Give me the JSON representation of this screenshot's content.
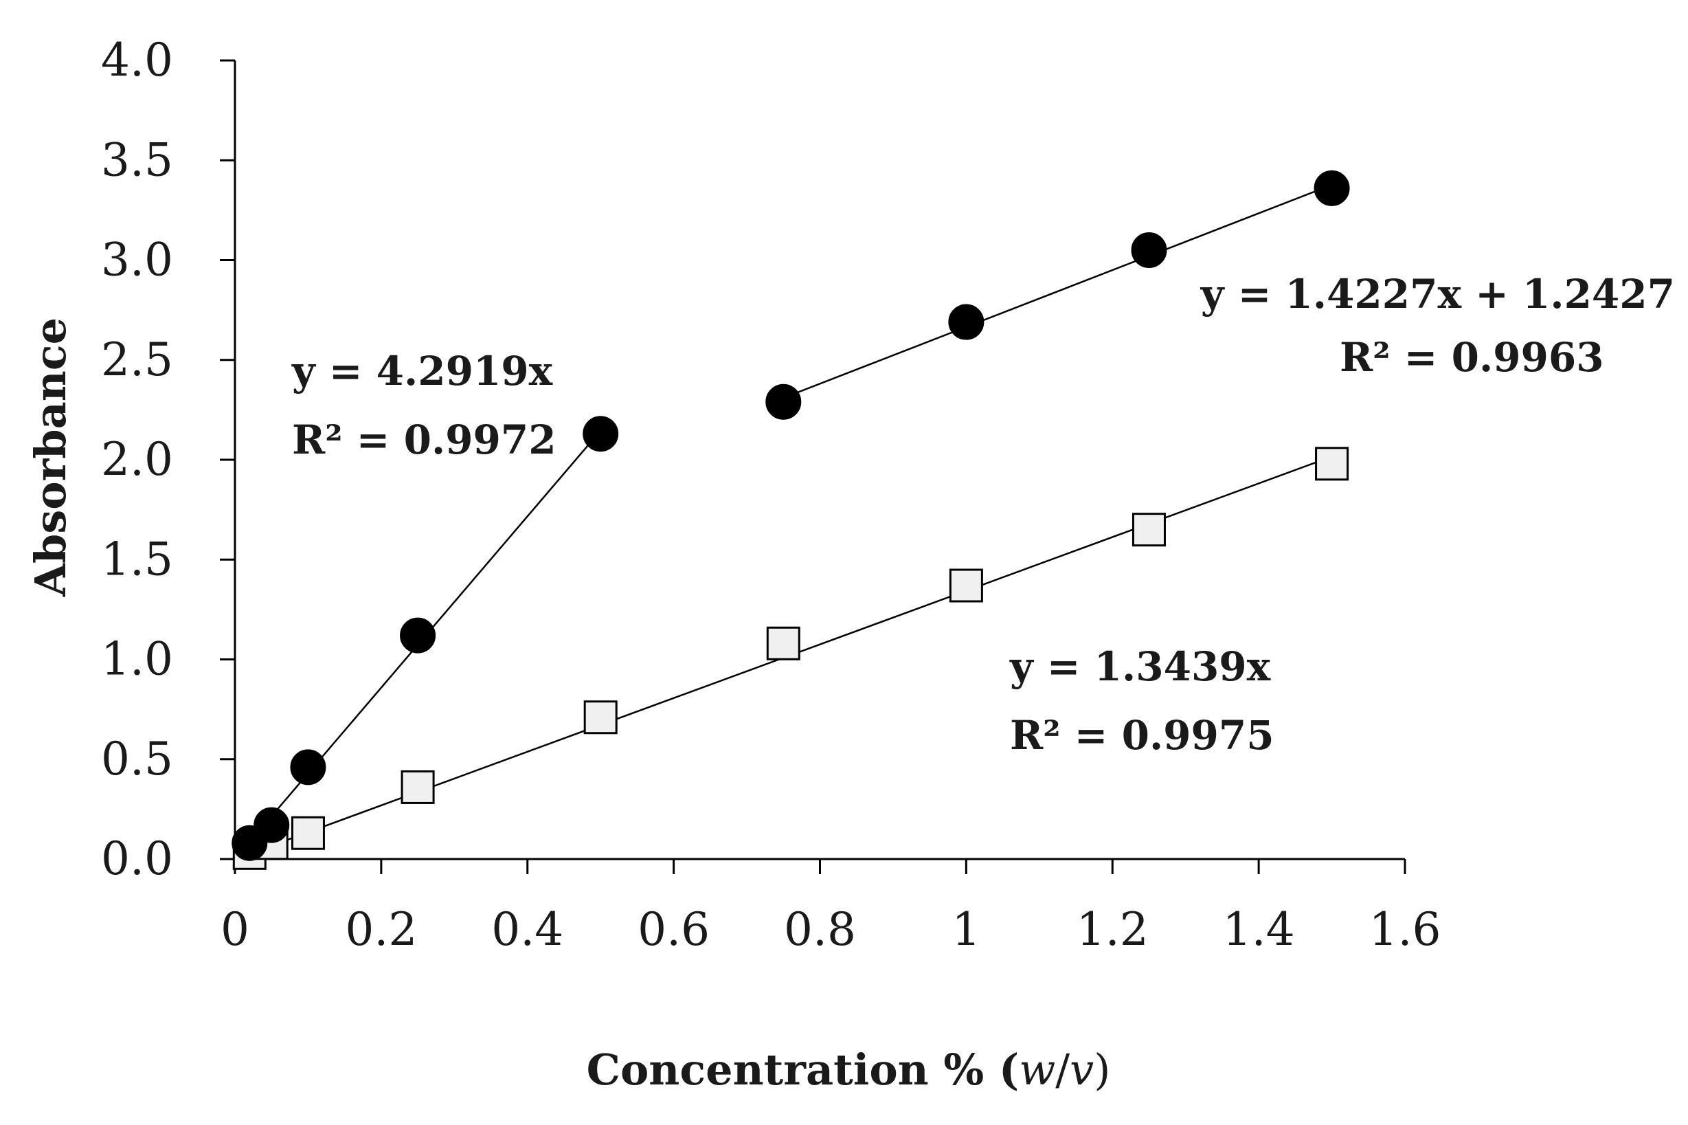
{
  "chart_data": {
    "type": "scatter",
    "title": "",
    "xlabel": "Concentration % (w/v)",
    "xlabel_parts": {
      "main": "Concentration % (",
      "italic_w": "w",
      "slash": "/",
      "italic_v": "v",
      "close": ")"
    },
    "ylabel": "Absorbance",
    "xlim": [
      0,
      1.6
    ],
    "ylim": [
      0,
      4.0
    ],
    "x_ticks": [
      0,
      0.2,
      0.4,
      0.6,
      0.8,
      1,
      1.2,
      1.4,
      1.6
    ],
    "x_tick_labels": [
      "0",
      "0.2",
      "0.4",
      "0.6",
      "0.8",
      "1",
      "1.2",
      "1.4",
      "1.6"
    ],
    "y_ticks": [
      0,
      0.5,
      1.0,
      1.5,
      2.0,
      2.5,
      3.0,
      3.5,
      4.0
    ],
    "y_tick_labels": [
      "0.0",
      "0.5",
      "1.0",
      "1.5",
      "2.0",
      "2.5",
      "3.0",
      "3.5",
      "4.0"
    ],
    "grid": false,
    "series": [
      {
        "name": "filled-circles-low",
        "marker": "circle-filled",
        "x": [
          0.02,
          0.05,
          0.1,
          0.25,
          0.5
        ],
        "y": [
          0.08,
          0.17,
          0.46,
          1.12,
          2.13
        ],
        "trendline": {
          "slope": 4.2919,
          "intercept": 0,
          "x_range": [
            0.0,
            0.5
          ]
        },
        "equation": "y = 4.2919x",
        "r2": "R² = 0.9972"
      },
      {
        "name": "filled-circles-high",
        "marker": "circle-filled",
        "x": [
          0.75,
          1.0,
          1.25,
          1.5
        ],
        "y": [
          2.29,
          2.69,
          3.05,
          3.36
        ],
        "trendline": {
          "slope": 1.4227,
          "intercept": 1.2427,
          "x_range": [
            0.75,
            1.5
          ]
        },
        "equation": "y = 1.4227x + 1.2427",
        "r2": "R² = 0.9963"
      },
      {
        "name": "open-squares",
        "marker": "square-open",
        "x": [
          0.02,
          0.05,
          0.1,
          0.25,
          0.5,
          0.75,
          1.0,
          1.25,
          1.5
        ],
        "y": [
          0.03,
          0.08,
          0.13,
          0.36,
          0.71,
          1.08,
          1.37,
          1.65,
          1.98
        ],
        "trendline": {
          "slope": 1.3439,
          "intercept": 0,
          "x_range": [
            0.02,
            1.5
          ]
        },
        "equation": "y = 1.3439x",
        "r2": "R² = 0.9975"
      }
    ],
    "colors": {
      "axis": "#000000",
      "filled_marker": "#000000",
      "open_marker_fill": "#f0f0f0",
      "open_marker_stroke": "#000000"
    }
  }
}
